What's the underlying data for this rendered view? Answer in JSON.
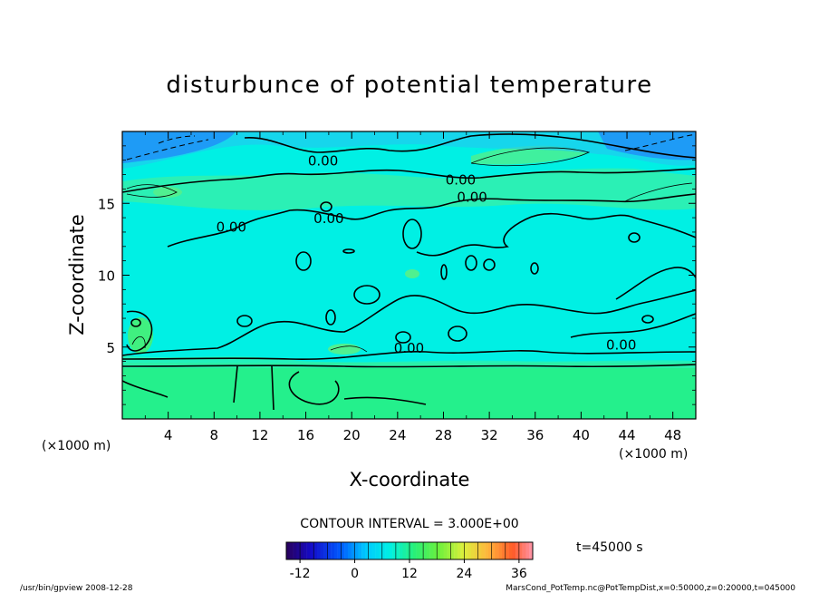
{
  "chart_data": {
    "type": "heatmap",
    "title": "disturbunce of potential temperature",
    "xlabel": "X-coordinate",
    "ylabel": "Z-coordinate",
    "x_unit_left": "(×1000 m)",
    "x_unit_right": "(×1000 m)",
    "xlim": [
      0,
      50
    ],
    "ylim": [
      0,
      20
    ],
    "x_ticks": [
      4,
      8,
      12,
      16,
      20,
      24,
      28,
      32,
      36,
      40,
      44,
      48
    ],
    "y_ticks": [
      5,
      10,
      15
    ],
    "contour_interval_text": "CONTOUR INTERVAL = 3.000E+00",
    "time_text": "t=45000 s",
    "contour_labels": [
      {
        "text": "0.00",
        "x": 17.5,
        "z": 18.0
      },
      {
        "text": "0.00",
        "x": 29.5,
        "z": 16.7
      },
      {
        "text": "0.00",
        "x": 30.5,
        "z": 15.5
      },
      {
        "text": "0.00",
        "x": 9.5,
        "z": 13.4
      },
      {
        "text": "0.00",
        "x": 18.0,
        "z": 14.0
      },
      {
        "text": "0.00",
        "x": 25.0,
        "z": 5.0
      },
      {
        "text": "0.00",
        "x": 43.5,
        "z": 5.2
      }
    ],
    "colorbar": {
      "min": -15,
      "max": 39,
      "step": 3,
      "tick_values": [
        -12,
        0,
        12,
        24,
        36
      ]
    },
    "colors": {
      "background_field": "#00f0e4",
      "lower_layer": "#20f088",
      "upper_blue": "#20b0f8",
      "green_band": "#38f0a0",
      "contour": "#000000"
    }
  },
  "footer": {
    "left": "/usr/bin/gpview   2008-12-28",
    "right": "MarsCond_PotTemp.nc@PotTempDist,x=0:50000,z=0:20000,t=045000"
  }
}
